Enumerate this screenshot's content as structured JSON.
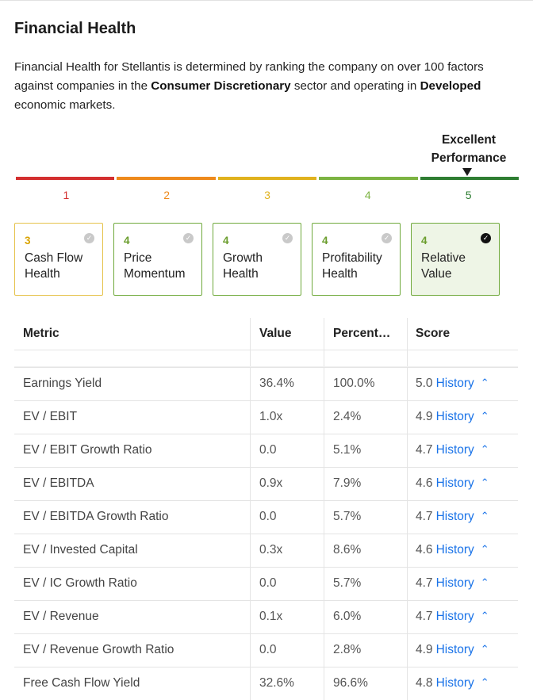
{
  "title": "Financial Health",
  "description": {
    "part1": "Financial Health for Stellantis is determined by ranking the company on over 100 factors against companies in the ",
    "sector": "Consumer Discretionary",
    "part2": " sector and operating in ",
    "market": "Developed",
    "part3": " economic markets."
  },
  "performance": {
    "label_line1": "Excellent",
    "label_line2": "Performance",
    "current_level": 5,
    "scale": [
      {
        "num": "1",
        "color": "#d32f2f"
      },
      {
        "num": "2",
        "color": "#ee8a1c"
      },
      {
        "num": "3",
        "color": "#e0b21e"
      },
      {
        "num": "4",
        "color": "#7cb342"
      },
      {
        "num": "5",
        "color": "#2e7d32"
      }
    ]
  },
  "cards": [
    {
      "score": "3",
      "line1": "Cash Flow",
      "line2": "Health",
      "score_color": "#d9a300",
      "border": "#e5c24a",
      "selected": false
    },
    {
      "score": "4",
      "line1": "Price",
      "line2": "Momentum",
      "score_color": "#6a9d2c",
      "border": "#6fa93b",
      "selected": false
    },
    {
      "score": "4",
      "line1": "Growth",
      "line2": "Health",
      "score_color": "#6a9d2c",
      "border": "#6fa93b",
      "selected": false
    },
    {
      "score": "4",
      "line1": "Profitability",
      "line2": "Health",
      "score_color": "#6a9d2c",
      "border": "#6fa93b",
      "selected": false
    },
    {
      "score": "4",
      "line1": "Relative",
      "line2": "Value",
      "score_color": "#6a9d2c",
      "border": "#6fa93b",
      "selected": true
    }
  ],
  "table": {
    "headers": {
      "metric": "Metric",
      "value": "Value",
      "percentile": "Percent…",
      "score": "Score"
    },
    "history_label": "History",
    "rows": [
      {
        "metric": "Earnings Yield",
        "value": "36.4%",
        "percentile": "100.0%",
        "score": "5.0"
      },
      {
        "metric": "EV / EBIT",
        "value": "1.0x",
        "percentile": "2.4%",
        "score": "4.9"
      },
      {
        "metric": "EV / EBIT Growth Ratio",
        "value": "0.0",
        "percentile": "5.1%",
        "score": "4.7"
      },
      {
        "metric": "EV / EBITDA",
        "value": "0.9x",
        "percentile": "7.9%",
        "score": "4.6"
      },
      {
        "metric": "EV / EBITDA Growth Ratio",
        "value": "0.0",
        "percentile": "5.7%",
        "score": "4.7"
      },
      {
        "metric": "EV / Invested Capital",
        "value": "0.3x",
        "percentile": "8.6%",
        "score": "4.6"
      },
      {
        "metric": "EV / IC Growth Ratio",
        "value": "0.0",
        "percentile": "5.7%",
        "score": "4.7"
      },
      {
        "metric": "EV / Revenue",
        "value": "0.1x",
        "percentile": "6.0%",
        "score": "4.7"
      },
      {
        "metric": "EV / Revenue Growth Ratio",
        "value": "0.0",
        "percentile": "2.8%",
        "score": "4.9"
      },
      {
        "metric": "Free Cash Flow Yield",
        "value": "32.6%",
        "percentile": "96.6%",
        "score": "4.8"
      }
    ]
  }
}
